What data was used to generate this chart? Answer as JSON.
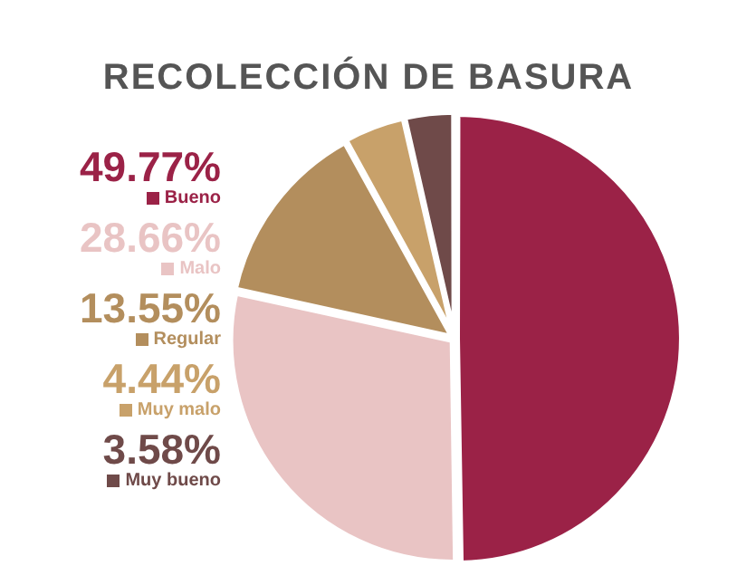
{
  "chart_data": {
    "type": "pie",
    "title": "RECOLECCIÓN DE BASURA",
    "categories": [
      "Bueno",
      "Malo",
      "Regular",
      "Muy malo",
      "Muy bueno"
    ],
    "values": [
      49.77,
      28.66,
      13.55,
      4.44,
      3.58
    ],
    "value_labels": [
      "49.77%",
      "28.66%",
      "13.55%",
      "4.44%",
      "3.58%"
    ],
    "colors": [
      "#9b2247",
      "#e9c4c4",
      "#b38e5d",
      "#c8a16a",
      "#6f4a49"
    ],
    "legend": "left"
  }
}
